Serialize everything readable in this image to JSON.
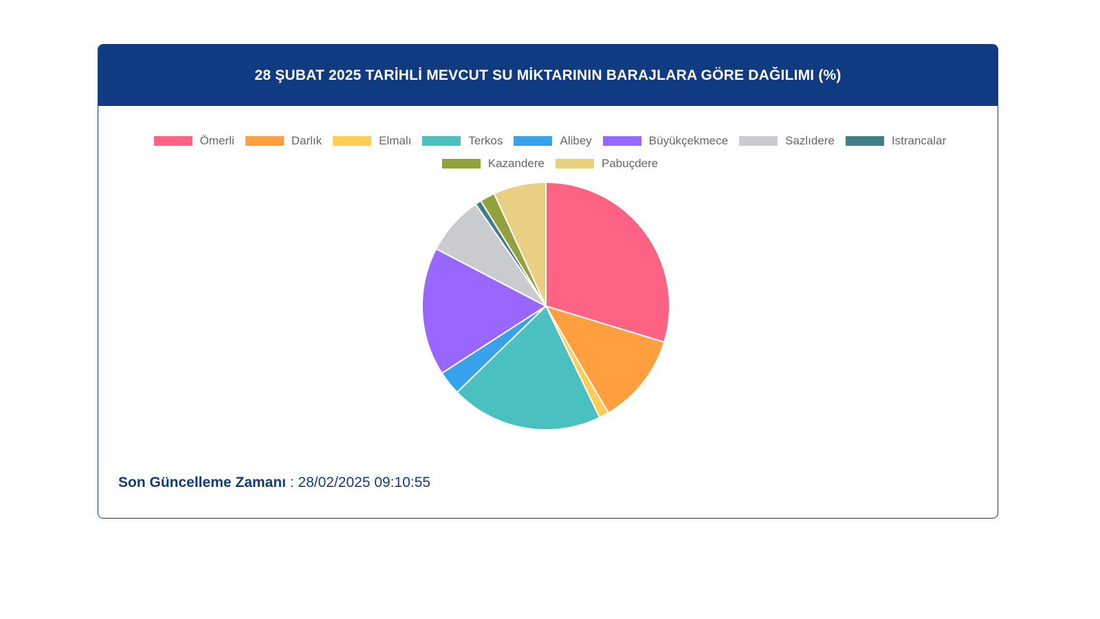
{
  "header": {
    "title": "28 ŞUBAT 2025 TARİHLİ MEVCUT SU MİKTARININ BARAJLARA GÖRE DAĞILIMI (%)"
  },
  "footer": {
    "label": "Son Güncelleme Zamanı",
    "separator": " : ",
    "value": "28/02/2025 09:10:55"
  },
  "chart_data": {
    "type": "pie",
    "title": "28 ŞUBAT 2025 TARİHLİ MEVCUT SU MİKTARININ BARAJLARA GÖRE DAĞILIMI (%)",
    "legend_position": "top",
    "series": [
      {
        "name": "Ömerli",
        "value": 30.3,
        "color": "#ff6384"
      },
      {
        "name": "Darlık",
        "value": 12.1,
        "color": "#ff9f40"
      },
      {
        "name": "Elmalı",
        "value": 1.3,
        "color": "#ffcd56"
      },
      {
        "name": "Terkos",
        "value": 20.3,
        "color": "#4bc0c0"
      },
      {
        "name": "Alibey",
        "value": 3.2,
        "color": "#36a2eb"
      },
      {
        "name": "Büyükçekmece",
        "value": 17.1,
        "color": "#9966ff"
      },
      {
        "name": "Sazlıdere",
        "value": 7.9,
        "color": "#c9cbcf"
      },
      {
        "name": "Istrancalar",
        "value": 0.8,
        "color": "#3f7f86"
      },
      {
        "name": "Kazandere",
        "value": 2.0,
        "color": "#93a03e"
      },
      {
        "name": "Pabuçdere",
        "value": 7.0,
        "color": "#e8cf82"
      }
    ]
  }
}
